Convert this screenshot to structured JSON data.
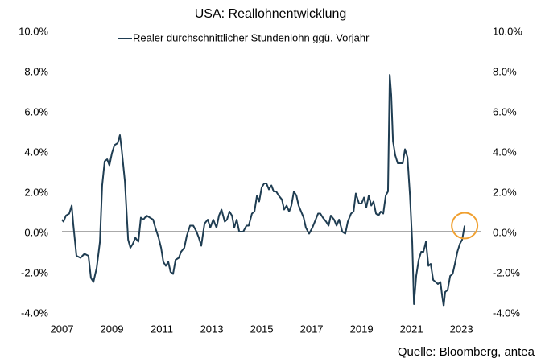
{
  "chart_data": {
    "type": "line",
    "title": "USA: Reallohnentwicklung",
    "source": "Quelle: Bloomberg, antea",
    "legend": "top",
    "x": [
      2007,
      2007.06,
      2007.16,
      2007.29,
      2007.39,
      2007.45,
      2007.58,
      2007.74,
      2007.9,
      2008.06,
      2008.16,
      2008.26,
      2008.39,
      2008.52,
      2008.61,
      2008.71,
      2008.81,
      2008.9,
      2009,
      2009.1,
      2009.23,
      2009.32,
      2009.39,
      2009.52,
      2009.65,
      2009.74,
      2009.84,
      2009.94,
      2010.06,
      2010.16,
      2010.26,
      2010.39,
      2010.52,
      2010.65,
      2010.74,
      2010.87,
      2010.97,
      2011.06,
      2011.16,
      2011.26,
      2011.35,
      2011.45,
      2011.55,
      2011.68,
      2011.77,
      2011.9,
      2012,
      2012.13,
      2012.26,
      2012.39,
      2012.48,
      2012.58,
      2012.71,
      2012.84,
      2012.94,
      2013.06,
      2013.19,
      2013.29,
      2013.39,
      2013.52,
      2013.61,
      2013.71,
      2013.81,
      2013.9,
      2014,
      2014.1,
      2014.26,
      2014.39,
      2014.48,
      2014.61,
      2014.71,
      2014.81,
      2014.9,
      2015,
      2015.1,
      2015.19,
      2015.29,
      2015.39,
      2015.48,
      2015.58,
      2015.68,
      2015.81,
      2015.9,
      2016,
      2016.1,
      2016.19,
      2016.29,
      2016.39,
      2016.48,
      2016.58,
      2016.68,
      2016.77,
      2016.9,
      2017.03,
      2017.13,
      2017.26,
      2017.35,
      2017.45,
      2017.58,
      2017.68,
      2017.77,
      2017.9,
      2018,
      2018.1,
      2018.23,
      2018.35,
      2018.45,
      2018.58,
      2018.68,
      2018.77,
      2018.9,
      2019,
      2019.1,
      2019.19,
      2019.29,
      2019.39,
      2019.48,
      2019.58,
      2019.68,
      2019.77,
      2019.87,
      2019.97,
      2020.06,
      2020.13,
      2020.19,
      2020.26,
      2020.35,
      2020.45,
      2020.55,
      2020.65,
      2020.74,
      2020.84,
      2020.94,
      2021.03,
      2021.1,
      2021.19,
      2021.29,
      2021.39,
      2021.48,
      2021.58,
      2021.68,
      2021.77,
      2021.87,
      2021.97,
      2022.06,
      2022.16,
      2022.23,
      2022.29,
      2022.35,
      2022.45,
      2022.55,
      2022.65,
      2022.74,
      2022.84,
      2022.94,
      2023.03,
      2023.13
    ],
    "series": [
      {
        "name": "Realer durchschnittlicher Stundenlohn ggü. Vorjahr",
        "color": "#1f3d52",
        "values": [
          0.6,
          0.5,
          0.8,
          0.9,
          1.3,
          0.4,
          -1.2,
          -1.3,
          -1.1,
          -1.2,
          -2.3,
          -2.5,
          -1.8,
          -0.5,
          2.3,
          3.5,
          3.6,
          3.3,
          3.9,
          4.3,
          4.4,
          4.8,
          4.1,
          2.5,
          -0.4,
          -0.8,
          -0.6,
          -0.3,
          -0.5,
          0.7,
          0.6,
          0.8,
          0.7,
          0.6,
          0.2,
          -0.3,
          -0.8,
          -1.5,
          -1.7,
          -1.5,
          -2.0,
          -2.1,
          -1.4,
          -1.3,
          -1.0,
          -0.8,
          -0.2,
          0.3,
          0.3,
          0.0,
          -0.3,
          -0.7,
          0.4,
          0.6,
          0.2,
          0.6,
          0.2,
          0.8,
          1.1,
          0.5,
          0.6,
          1.0,
          0.8,
          0.2,
          0.6,
          0.0,
          0.0,
          0.3,
          0.3,
          0.9,
          1.0,
          1.8,
          1.5,
          2.2,
          2.4,
          2.4,
          2.1,
          2.3,
          2.0,
          2.0,
          1.8,
          1.6,
          1.1,
          1.3,
          1.0,
          1.3,
          2.0,
          1.8,
          1.3,
          1.0,
          0.7,
          0.2,
          -0.1,
          0.2,
          0.5,
          0.9,
          0.9,
          0.7,
          0.5,
          0.3,
          0.8,
          0.6,
          0.3,
          0.6,
          0.0,
          -0.1,
          0.5,
          0.9,
          1.0,
          1.9,
          1.4,
          1.4,
          1.7,
          1.2,
          1.8,
          1.3,
          1.5,
          0.9,
          0.8,
          1.0,
          0.9,
          1.8,
          2.0,
          7.8,
          6.8,
          4.5,
          3.8,
          3.4,
          3.4,
          3.4,
          4.1,
          3.7,
          1.8,
          -0.5,
          -3.6,
          -2.2,
          -1.4,
          -1.0,
          -1.0,
          -0.5,
          -1.7,
          -1.6,
          -2.4,
          -2.5,
          -2.6,
          -2.5,
          -3.2,
          -3.7,
          -3.0,
          -2.9,
          -2.2,
          -2.1,
          -1.6,
          -1.0,
          -0.6,
          -0.4,
          0.3
        ]
      }
    ],
    "xlim": [
      2007,
      2023.77
    ],
    "xticks": [
      2007,
      2009,
      2011,
      2013,
      2015,
      2017,
      2019,
      2021,
      2023
    ],
    "ylim": [
      -4,
      10
    ],
    "yticks": [
      {
        "value": -4,
        "label": "-4.0%"
      },
      {
        "value": -2,
        "label": "-2.0%"
      },
      {
        "value": 0,
        "label": "0.0%"
      },
      {
        "value": 2,
        "label": "2.0%"
      },
      {
        "value": 4,
        "label": "4.0%"
      },
      {
        "value": 6,
        "label": "6.0%"
      },
      {
        "value": 8,
        "label": "8.0%"
      },
      {
        "value": 10,
        "label": "10.0%"
      }
    ],
    "y2lim": [
      -4,
      10
    ],
    "y2ticks": [
      {
        "value": -4,
        "label": "-4.0%"
      },
      {
        "value": -2,
        "label": "-2.0%"
      },
      {
        "value": 0,
        "label": "0.0%"
      },
      {
        "value": 2,
        "label": "2.0%"
      },
      {
        "value": 4,
        "label": "4.0%"
      },
      {
        "value": 6,
        "label": "6.0%"
      },
      {
        "value": 8,
        "label": "8.0%"
      },
      {
        "value": 10,
        "label": "10.0%"
      }
    ],
    "highlight_color": "#f0a030"
  }
}
